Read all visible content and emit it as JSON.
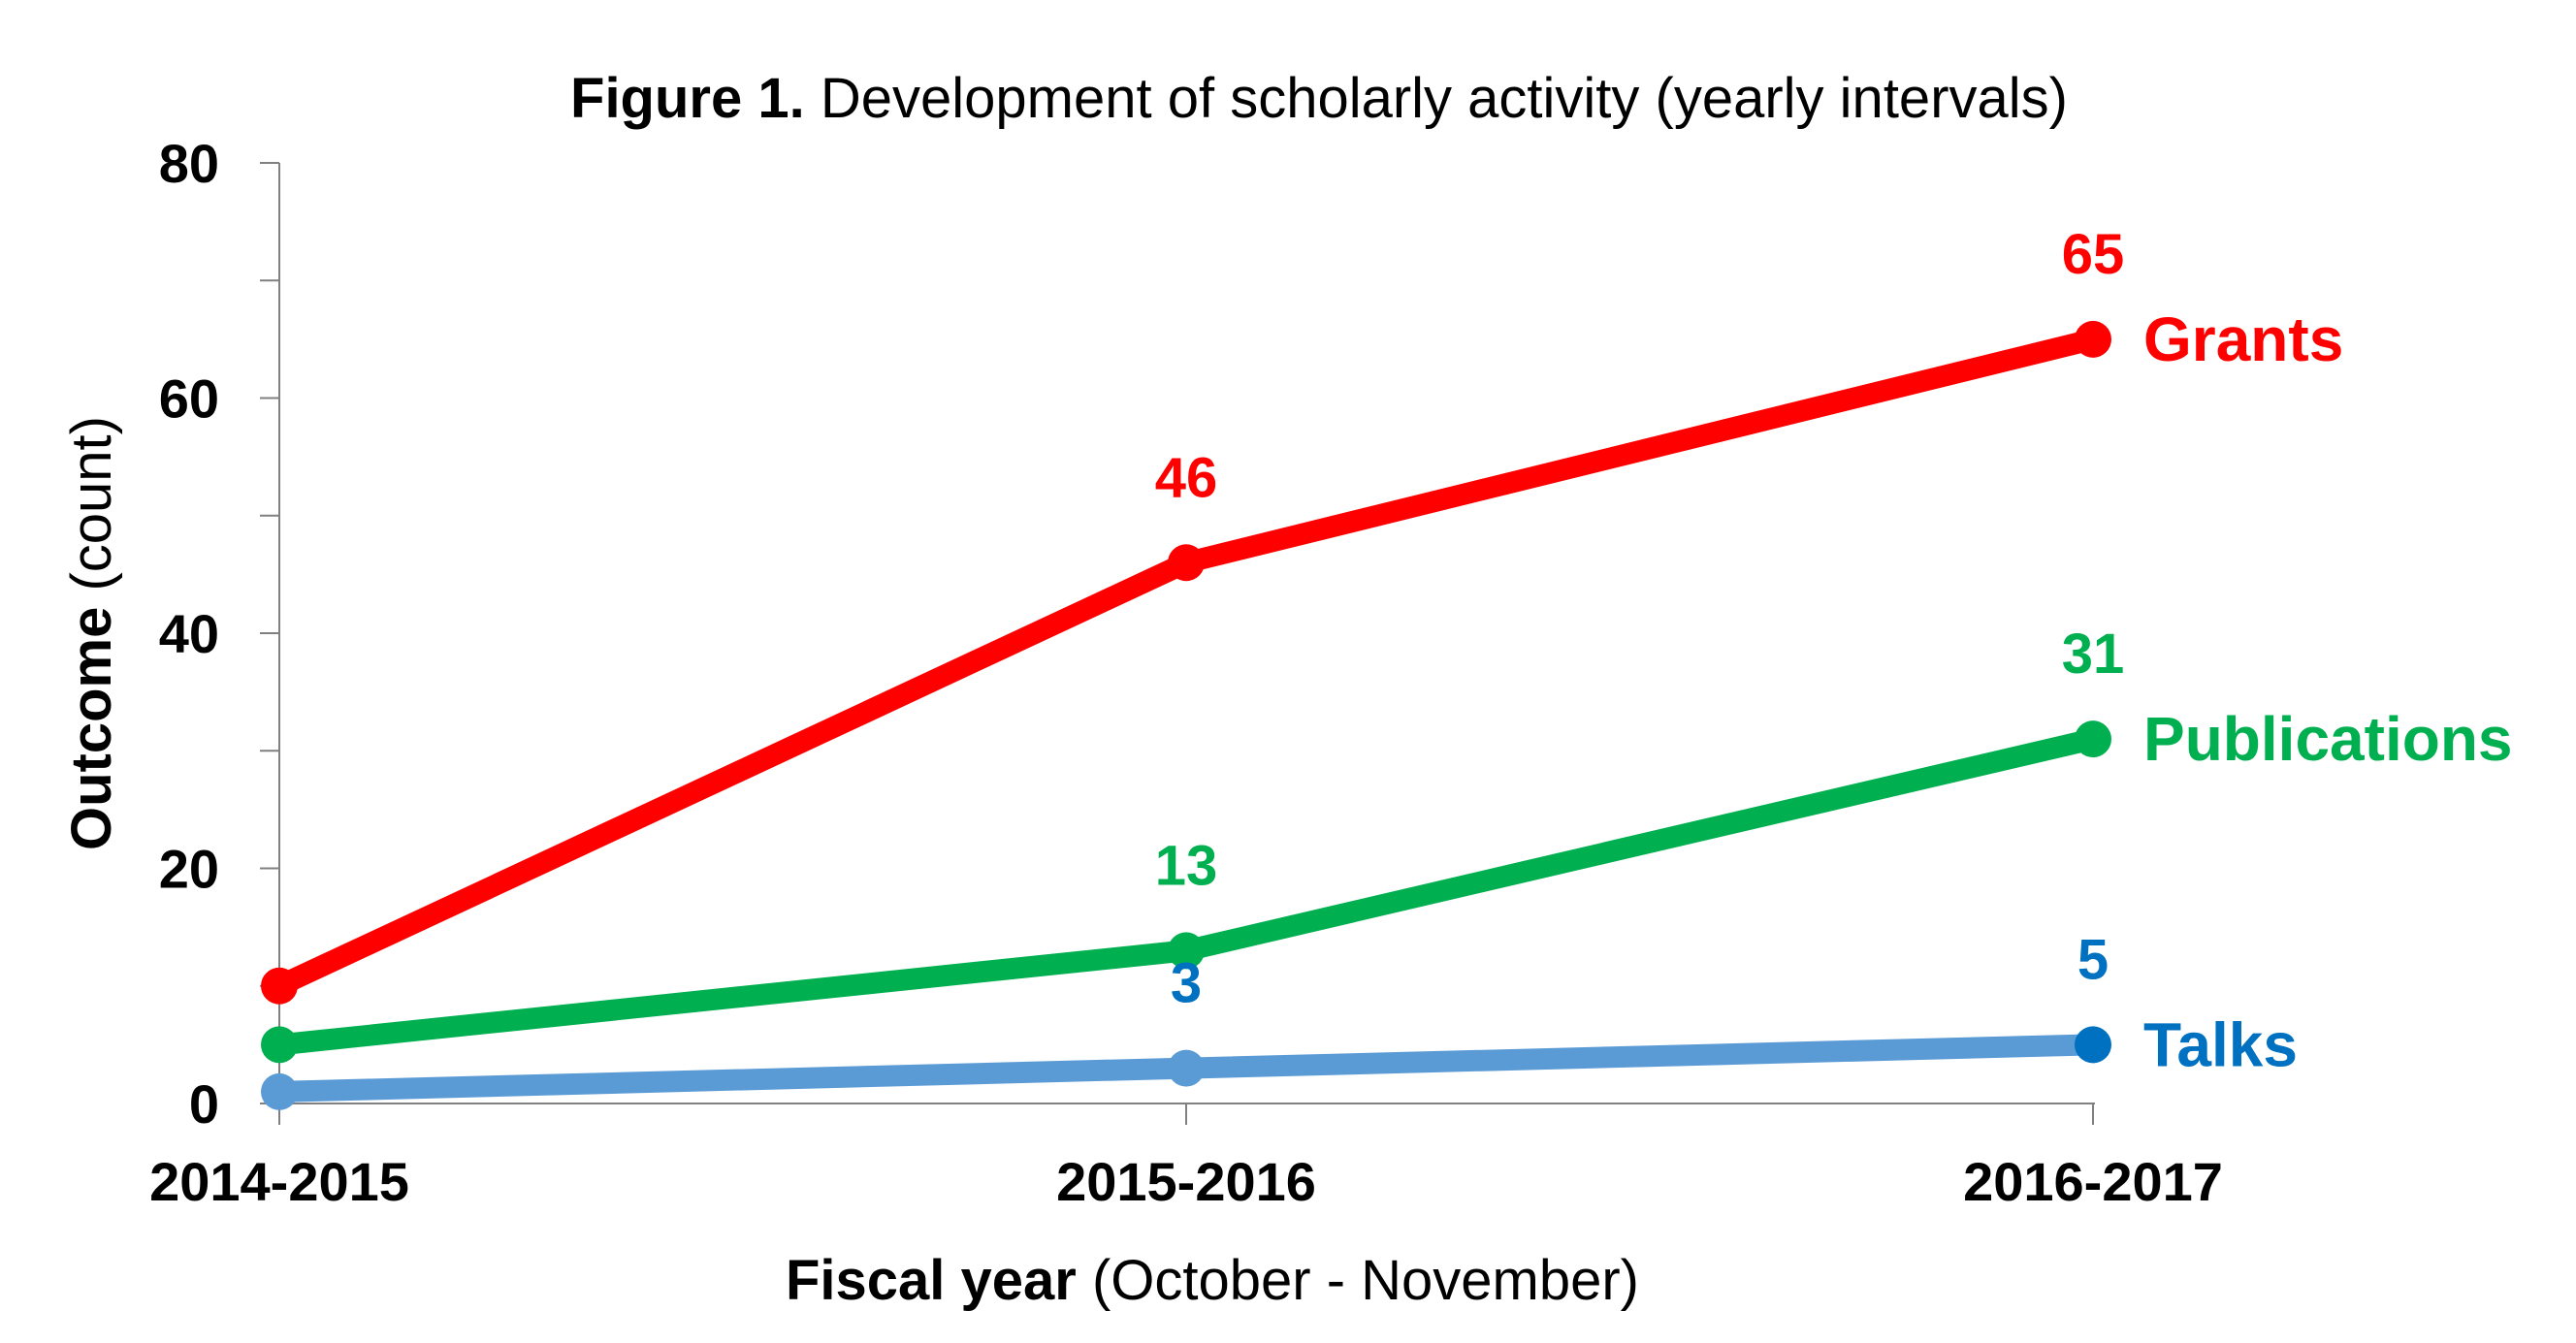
{
  "chart_data": {
    "type": "line",
    "title_bold": "Figure 1.",
    "title_rest": " Development of scholarly activity (yearly intervals)",
    "xlabel_bold": "Fiscal year",
    "xlabel_rest": " (October - November)",
    "ylabel_bold": "Outcome",
    "ylabel_rest": " (count)",
    "categories": [
      "2014-2015",
      "2015-2016",
      "2016-2017"
    ],
    "ylim": [
      0,
      80
    ],
    "yticks": [
      "0",
      "20",
      "40",
      "60",
      "80"
    ],
    "grid": false,
    "legend": "inline-right",
    "series": [
      {
        "name": "Grants",
        "values": [
          10,
          46,
          65
        ],
        "labels": [
          "",
          "46",
          "65"
        ],
        "color": "#ff0000",
        "label_color": "#ff0000",
        "marker_color": "#ff0000"
      },
      {
        "name": "Publications",
        "values": [
          5,
          13,
          31
        ],
        "labels": [
          "",
          "13",
          "31"
        ],
        "color": "#00b050",
        "label_color": "#00b050",
        "marker_color": "#00b050"
      },
      {
        "name": "Talks",
        "values": [
          1,
          3,
          5
        ],
        "labels": [
          "",
          "3",
          "5"
        ],
        "color": "#5b9bd5",
        "label_color": "#0070c0",
        "marker_color": "#0070c0"
      }
    ]
  }
}
